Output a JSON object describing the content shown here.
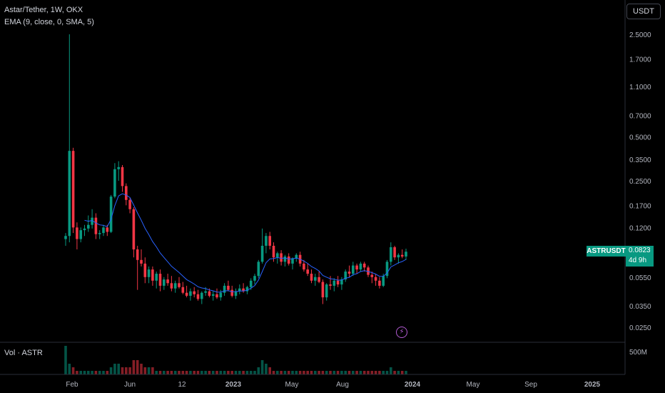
{
  "header": {
    "symbol_line": "Astar/Tether, 1W, OKX",
    "indicator_line": "EMA (9, close, 0, SMA, 5)"
  },
  "volume_label": "Vol · ASTR",
  "unit_button": "USDT",
  "price_badge": {
    "ticker": "ASTRUSDT",
    "price": "0.0823",
    "countdown": "4d 9h"
  },
  "event_icon": "lightning-bolt-icon",
  "colors": {
    "up": "#089981",
    "down": "#f23645",
    "ema": "#2962ff",
    "background": "#000000"
  },
  "chart_data": {
    "type": "candlestick",
    "scale": "log",
    "y_ticks": [
      "2.5000",
      "1.7000",
      "1.1000",
      "0.7000",
      "0.5000",
      "0.3500",
      "0.2500",
      "0.1700",
      "0.1200",
      "0.0550",
      "0.0350",
      "0.0250"
    ],
    "x_ticks": [
      "Feb",
      "Jun",
      "12",
      "2023",
      "May",
      "Aug",
      "2024",
      "May",
      "Sep",
      "2025"
    ],
    "volume_tick": "500M",
    "series": [
      {
        "name": "ASTRUSDT",
        "candles": [
          [
            0.1,
            0.11,
            0.09,
            0.105
          ],
          [
            0.105,
            2.5,
            0.095,
            0.4
          ],
          [
            0.4,
            0.42,
            0.11,
            0.12
          ],
          [
            0.12,
            0.13,
            0.085,
            0.1
          ],
          [
            0.1,
            0.12,
            0.095,
            0.115
          ],
          [
            0.115,
            0.125,
            0.105,
            0.118
          ],
          [
            0.118,
            0.145,
            0.112,
            0.125
          ],
          [
            0.125,
            0.16,
            0.118,
            0.14
          ],
          [
            0.14,
            0.15,
            0.1,
            0.108
          ],
          [
            0.108,
            0.115,
            0.1,
            0.11
          ],
          [
            0.11,
            0.125,
            0.105,
            0.12
          ],
          [
            0.12,
            0.125,
            0.105,
            0.112
          ],
          [
            0.112,
            0.2,
            0.11,
            0.195
          ],
          [
            0.195,
            0.33,
            0.19,
            0.3
          ],
          [
            0.3,
            0.34,
            0.25,
            0.31
          ],
          [
            0.31,
            0.32,
            0.21,
            0.23
          ],
          [
            0.23,
            0.24,
            0.17,
            0.185
          ],
          [
            0.185,
            0.19,
            0.15,
            0.16
          ],
          [
            0.16,
            0.165,
            0.075,
            0.085
          ],
          [
            0.085,
            0.09,
            0.045,
            0.072
          ],
          [
            0.072,
            0.085,
            0.065,
            0.068
          ],
          [
            0.068,
            0.075,
            0.05,
            0.055
          ],
          [
            0.055,
            0.065,
            0.05,
            0.062
          ],
          [
            0.062,
            0.065,
            0.048,
            0.052
          ],
          [
            0.052,
            0.06,
            0.046,
            0.058
          ],
          [
            0.058,
            0.062,
            0.044,
            0.048
          ],
          [
            0.048,
            0.055,
            0.045,
            0.053
          ],
          [
            0.053,
            0.058,
            0.048,
            0.05
          ],
          [
            0.05,
            0.056,
            0.044,
            0.046
          ],
          [
            0.046,
            0.052,
            0.043,
            0.05
          ],
          [
            0.05,
            0.055,
            0.046,
            0.047
          ],
          [
            0.047,
            0.051,
            0.042,
            0.043
          ],
          [
            0.043,
            0.048,
            0.04,
            0.041
          ],
          [
            0.041,
            0.046,
            0.038,
            0.044
          ],
          [
            0.044,
            0.047,
            0.04,
            0.042
          ],
          [
            0.042,
            0.045,
            0.038,
            0.039
          ],
          [
            0.039,
            0.044,
            0.036,
            0.043
          ],
          [
            0.043,
            0.047,
            0.041,
            0.044
          ],
          [
            0.044,
            0.046,
            0.04,
            0.041
          ],
          [
            0.041,
            0.044,
            0.038,
            0.042
          ],
          [
            0.042,
            0.046,
            0.039,
            0.04
          ],
          [
            0.04,
            0.045,
            0.038,
            0.043
          ],
          [
            0.043,
            0.05,
            0.041,
            0.048
          ],
          [
            0.048,
            0.052,
            0.044,
            0.045
          ],
          [
            0.045,
            0.048,
            0.04,
            0.041
          ],
          [
            0.041,
            0.046,
            0.039,
            0.044
          ],
          [
            0.044,
            0.049,
            0.042,
            0.046
          ],
          [
            0.046,
            0.05,
            0.043,
            0.044
          ],
          [
            0.044,
            0.048,
            0.042,
            0.047
          ],
          [
            0.047,
            0.054,
            0.045,
            0.052
          ],
          [
            0.052,
            0.058,
            0.049,
            0.056
          ],
          [
            0.056,
            0.072,
            0.054,
            0.07
          ],
          [
            0.07,
            0.118,
            0.068,
            0.09
          ],
          [
            0.09,
            0.11,
            0.08,
            0.105
          ],
          [
            0.105,
            0.112,
            0.085,
            0.09
          ],
          [
            0.09,
            0.095,
            0.07,
            0.075
          ],
          [
            0.075,
            0.082,
            0.068,
            0.08
          ],
          [
            0.08,
            0.084,
            0.066,
            0.07
          ],
          [
            0.07,
            0.078,
            0.065,
            0.076
          ],
          [
            0.076,
            0.08,
            0.066,
            0.068
          ],
          [
            0.068,
            0.075,
            0.062,
            0.074
          ],
          [
            0.074,
            0.08,
            0.07,
            0.078
          ],
          [
            0.078,
            0.082,
            0.065,
            0.068
          ],
          [
            0.068,
            0.072,
            0.06,
            0.062
          ],
          [
            0.062,
            0.068,
            0.056,
            0.058
          ],
          [
            0.058,
            0.062,
            0.05,
            0.052
          ],
          [
            0.052,
            0.058,
            0.048,
            0.055
          ],
          [
            0.055,
            0.06,
            0.05,
            0.051
          ],
          [
            0.051,
            0.053,
            0.036,
            0.04
          ],
          [
            0.04,
            0.05,
            0.038,
            0.049
          ],
          [
            0.049,
            0.056,
            0.045,
            0.048
          ],
          [
            0.048,
            0.054,
            0.044,
            0.052
          ],
          [
            0.052,
            0.056,
            0.047,
            0.049
          ],
          [
            0.049,
            0.055,
            0.045,
            0.053
          ],
          [
            0.053,
            0.062,
            0.051,
            0.06
          ],
          [
            0.06,
            0.066,
            0.055,
            0.058
          ],
          [
            0.058,
            0.07,
            0.056,
            0.066
          ],
          [
            0.066,
            0.068,
            0.058,
            0.062
          ],
          [
            0.062,
            0.07,
            0.06,
            0.068
          ],
          [
            0.068,
            0.07,
            0.06,
            0.064
          ],
          [
            0.064,
            0.066,
            0.055,
            0.057
          ],
          [
            0.057,
            0.06,
            0.05,
            0.055
          ],
          [
            0.055,
            0.058,
            0.048,
            0.052
          ],
          [
            0.052,
            0.055,
            0.046,
            0.048
          ],
          [
            0.048,
            0.058,
            0.047,
            0.056
          ],
          [
            0.056,
            0.072,
            0.054,
            0.07
          ],
          [
            0.07,
            0.095,
            0.066,
            0.088
          ],
          [
            0.088,
            0.09,
            0.072,
            0.075
          ],
          [
            0.075,
            0.08,
            0.068,
            0.078
          ],
          [
            0.078,
            0.085,
            0.074,
            0.076
          ],
          [
            0.076,
            0.086,
            0.072,
            0.082
          ]
        ]
      },
      {
        "name": "EMA",
        "period": 9
      }
    ],
    "volume": [
      8,
      3,
      2,
      1,
      1,
      1,
      1,
      1,
      1,
      1,
      1,
      1,
      2,
      3,
      3,
      2,
      2,
      2,
      4,
      4,
      3,
      2,
      2,
      2,
      1,
      1,
      1,
      1,
      1,
      1,
      1,
      1,
      1,
      1,
      1,
      1,
      1,
      1,
      1,
      1,
      1,
      1,
      1,
      1,
      1,
      1,
      1,
      1,
      1,
      1,
      1,
      2,
      4,
      3,
      2,
      1,
      1,
      1,
      1,
      1,
      1,
      1,
      1,
      1,
      1,
      1,
      1,
      1,
      1,
      1,
      1,
      1,
      1,
      1,
      1,
      1,
      1,
      1,
      1,
      1,
      1,
      1,
      1,
      1,
      1,
      1,
      2,
      1,
      1,
      1,
      1
    ],
    "grid": false
  }
}
